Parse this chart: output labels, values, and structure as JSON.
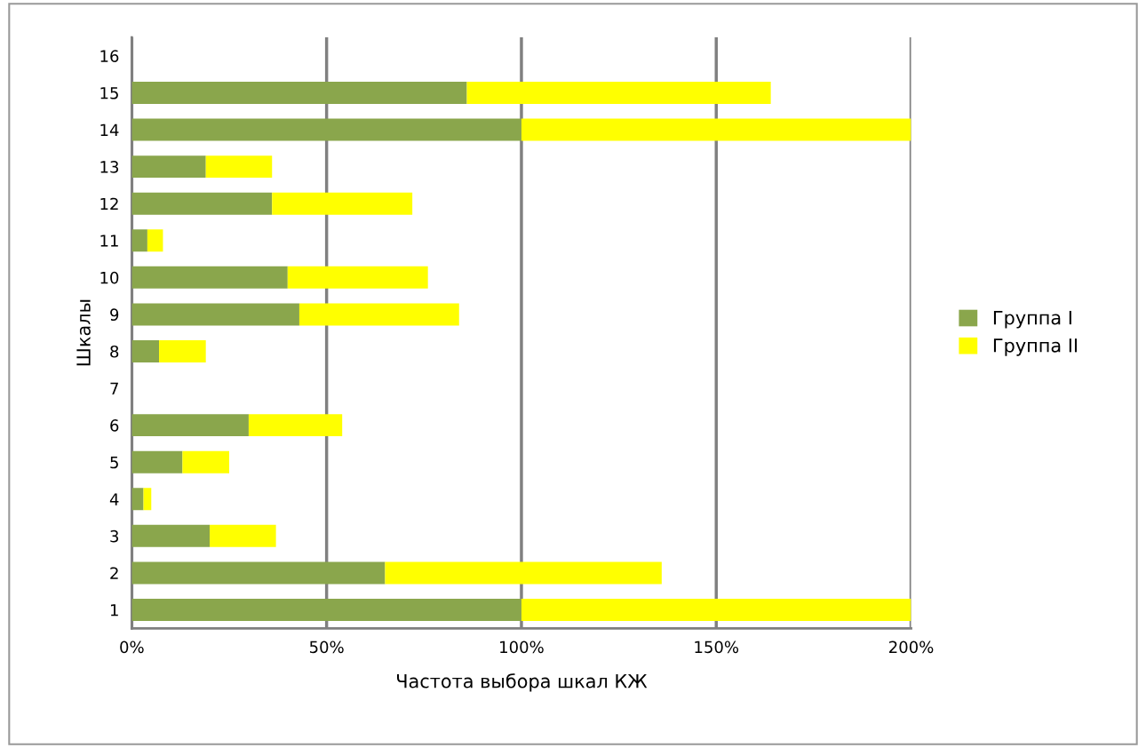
{
  "chart_data": {
    "type": "bar",
    "orientation": "horizontal",
    "stacked": true,
    "xlabel": "Частота выбора шкал КЖ",
    "ylabel": "Шкалы",
    "categories": [
      "16",
      "15",
      "14",
      "13",
      "12",
      "11",
      "10",
      "9",
      "8",
      "7",
      "6",
      "5",
      "4",
      "3",
      "2",
      "1"
    ],
    "series": [
      {
        "name": "Группа I",
        "color": "#8aa64c",
        "values": [
          0,
          86,
          100,
          19,
          36,
          4,
          40,
          43,
          7,
          0,
          30,
          13,
          3,
          20,
          65,
          100
        ]
      },
      {
        "name": "Группа II",
        "color": "#ffff00",
        "values": [
          0,
          78,
          100,
          17,
          36,
          4,
          36,
          41,
          12,
          0,
          24,
          12,
          2,
          17,
          71,
          100
        ]
      }
    ],
    "xlim": [
      0,
      200
    ],
    "xticks": [
      {
        "value": 0,
        "label": "0%"
      },
      {
        "value": 50,
        "label": "50%"
      },
      {
        "value": 100,
        "label": "100%"
      },
      {
        "value": 150,
        "label": "150%"
      },
      {
        "value": 200,
        "label": "200%"
      }
    ],
    "grid": "x",
    "legend": "right"
  }
}
